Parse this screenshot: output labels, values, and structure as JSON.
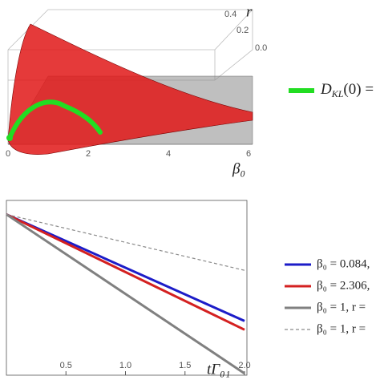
{
  "surface_plot": {
    "x_ticks": [
      "0",
      "2",
      "4",
      "6"
    ],
    "r_ticks": [
      "0.4",
      "0.2",
      "0.0"
    ],
    "x_label": "β₀",
    "r_label": "r",
    "legend": {
      "symbol": "D",
      "subscript": "KL",
      "text": "(0) ="
    }
  },
  "chart_data": {
    "type": "line",
    "x_label": "tΓ₀₁",
    "x": [
      0,
      2
    ],
    "xlim": [
      0,
      2.02
    ],
    "ylim": [
      0,
      1
    ],
    "xticks": [
      {
        "value": 0.5,
        "label": "0.5"
      },
      {
        "value": 1,
        "label": "1.0"
      },
      {
        "value": 1.5,
        "label": "1.5"
      },
      {
        "value": 2,
        "label": "2.0"
      }
    ],
    "series": [
      {
        "name": "β₀ = 0.084,",
        "color": "#1c1cc8",
        "values": [
          0.92,
          0.31
        ]
      },
      {
        "name": "β₀ = 2.306,",
        "color": "#d42020",
        "values": [
          0.92,
          0.26
        ]
      },
      {
        "name": "β₀ = 1, r =",
        "color": "#808080",
        "values": [
          0.92,
          0.01
        ]
      },
      {
        "name": "β₀ = 1, r =",
        "color": "#8a8a8a",
        "dashed": true,
        "values": [
          0.92,
          0.6
        ]
      }
    ]
  }
}
